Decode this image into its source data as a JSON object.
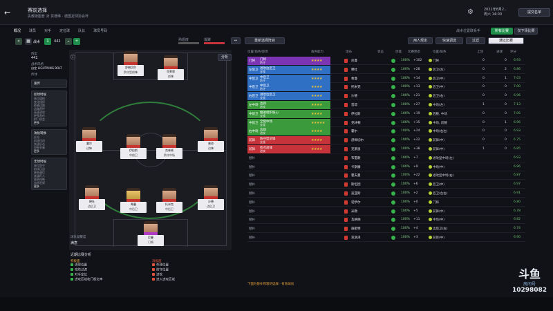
{
  "header": {
    "title": "赛前选择",
    "subtitle": "执教斯图普 对 贾德维 · 德国足球协会杯",
    "date_line1": "2021年8月2...",
    "date_line2": "周六 14:00",
    "continue_label": "提交名单"
  },
  "tabs": [
    "概况",
    "球员",
    "对手",
    "定位球",
    "队长",
    "球员号码"
  ],
  "toolbar": {
    "formation_label": "阵型",
    "formation": "442",
    "tactic_label": "战术风格",
    "tactic_name": "自定 LIGHTNING BOLT",
    "instruction_label": "传球",
    "instruction_value": "速传",
    "analysis_label": "分析",
    "select_label": "重新选择阵容",
    "human_select": "用人规定",
    "quick_select": "快速调选",
    "filter": "过滤",
    "all_matches": "所有比赛",
    "next_match": "仅下场比赛",
    "review": "通过比赛",
    "tactic_fit_label": "战术位置联系手",
    "fitness_label": "熟悉度",
    "cohesion_label": "凝聚"
  },
  "left_panel": {
    "formation_label": "阵型",
    "formation": "442",
    "style_label": "战术风格",
    "style": "自定 LIGHTNING BOLT",
    "pass_label": "传球",
    "pass_value": "速传",
    "box1_title": "控球时候",
    "box1_items": [
      "高位逼抢",
      "变化组织",
      "依赖边路",
      "边路直传",
      "高速进攻",
      "更多直传",
      "射门机会"
    ],
    "box2_title": "攻防转换",
    "box2_items": [
      "反抢",
      "前场压迫",
      "快速反击",
      "控制节奏"
    ],
    "box3_title": "无球时候",
    "box3_items": [
      "高位防守",
      "前场压迫",
      "更多越位",
      "紧逼盯人",
      "更多抢断",
      "战术犯规"
    ],
    "more": "更多"
  },
  "pitch": {
    "players": [
      {
        "name": "舒梅切尔",
        "role": "防守型前锋"
      },
      {
        "name": "克莱恩",
        "role": "前锋"
      },
      {
        "name": "霍尔",
        "role": "边锋"
      },
      {
        "name": "伊拉斯",
        "role": "中前卫"
      },
      {
        "name": "克林顿",
        "role": "防守中场"
      },
      {
        "name": "普琼",
        "role": "边锋"
      },
      {
        "name": "穆杜",
        "role": "边后卫"
      },
      {
        "name": "希曼",
        "role": "中后卫"
      },
      {
        "name": "托米克",
        "role": "中后卫"
      },
      {
        "name": "沙德",
        "role": "边后卫"
      },
      {
        "name": "尼曼",
        "role": "门将"
      }
    ]
  },
  "bottom_info": {
    "title": "近期比赛分析",
    "team_label": "球队凝聚度",
    "team_value": "满意",
    "left_header": "积极面",
    "right_header": "消极面",
    "left_items": [
      "进球位置",
      "攻防过渡",
      "对手定位",
      "进攻区域和门框化率"
    ],
    "right_items": [
      "失球位置",
      "防守位置",
      "进攻",
      "进入进攻区域"
    ]
  },
  "table": {
    "headers": [
      "位置/角色/职责",
      "角色能力",
      "球员",
      "状态",
      "体能",
      "比赛熟悉",
      "位置/角色",
      "上场",
      "进球",
      "评分"
    ],
    "rows": [
      {
        "pos": "门将",
        "role": "门将",
        "duty": "防守",
        "stars": "★★★★",
        "player": "尼曼",
        "pct": "100%",
        "delta": "+102",
        "posname": "门将",
        "n1": "0",
        "n2": "0",
        "rating": "6.93",
        "color": "#7b35b3"
      },
      {
        "pos": "左后卫",
        "role": "进攻边后卫",
        "duty": "支援",
        "stars": "★★★★",
        "player": "穆杜",
        "pct": "100%",
        "delta": "+28",
        "posname": "后卫(左)",
        "n1": "0",
        "n2": "2",
        "rating": "6.86",
        "color": "#2f6fc4"
      },
      {
        "pos": "中后卫",
        "role": "中后卫",
        "duty": "防守",
        "stars": "★★★★",
        "player": "希曼",
        "pct": "100%",
        "delta": "+14",
        "posname": "后卫(中)",
        "n1": "0",
        "n2": "1",
        "rating": "7.03",
        "color": "#2f6fc4"
      },
      {
        "pos": "中后卫",
        "role": "中后卫",
        "duty": "防守",
        "stars": "★★★★",
        "player": "托米克",
        "pct": "100%",
        "delta": "+13",
        "posname": "后卫(中)",
        "n1": "0",
        "n2": "0",
        "rating": "7.00",
        "color": "#2f6fc4"
      },
      {
        "pos": "右后卫",
        "role": "进攻边后卫",
        "duty": "支援",
        "stars": "★★★★",
        "player": "沙德",
        "pct": "100%",
        "delta": "+21",
        "posname": "后卫(右)",
        "n1": "0",
        "n2": "0",
        "rating": "6.96",
        "color": "#2f6fc4"
      },
      {
        "pos": "左中场",
        "role": "边锋",
        "duty": "进攻",
        "stars": "★★★★",
        "player": "普琼",
        "pct": "100%",
        "delta": "+27",
        "posname": "中场(左)",
        "n1": "1",
        "n2": "0",
        "rating": "7.13",
        "color": "#3a9a3c"
      },
      {
        "pos": "中前卫",
        "role": "推进组织核心",
        "duty": "支援",
        "stars": "★★★★",
        "player": "伊拉斯",
        "pct": "100%",
        "delta": "+19",
        "posname": "后腰, 中场",
        "n1": "0",
        "n2": "0",
        "rating": "7.05",
        "color": "#3a9a3c"
      },
      {
        "pos": "中前卫",
        "role": "全能中场",
        "duty": "支援",
        "stars": "★★★★★",
        "player": "克林顿",
        "pct": "100%",
        "delta": "+15",
        "posname": "中场, 前腰",
        "n1": "0",
        "n2": "1",
        "rating": "6.96",
        "color": "#3a9a3c"
      },
      {
        "pos": "右中场",
        "role": "边锋",
        "duty": "进攻",
        "stars": "★★★★",
        "player": "霍尔",
        "pct": "100%",
        "delta": "+24",
        "posname": "中场(右左)",
        "n1": "0",
        "n2": "0",
        "rating": "6.93",
        "color": "#3a9a3c"
      },
      {
        "pos": "前锋",
        "role": "防守型前锋",
        "duty": "支援",
        "stars": "★★★★",
        "player": "舒梅切尔",
        "pct": "100%",
        "delta": "+22",
        "posname": "前锋(中)",
        "n1": "0",
        "n2": "0",
        "rating": "6.75",
        "color": "#c7333a"
      },
      {
        "pos": "前锋",
        "role": "抢点前锋",
        "duty": "进攻",
        "stars": "★★★★",
        "player": "克莱恩",
        "pct": "100%",
        "delta": "+38",
        "posname": "前锋(中)",
        "n1": "1",
        "n2": "0",
        "rating": "6.85",
        "color": "#c7333a"
      },
      {
        "pos": "替补",
        "role": "",
        "duty": "",
        "stars": "",
        "player": "布雷默",
        "pct": "100%",
        "delta": "+7",
        "posname": "进攻型中场(左)",
        "n1": "",
        "n2": "",
        "rating": "6.93",
        "color": ""
      },
      {
        "pos": "替补",
        "role": "",
        "duty": "",
        "stars": "",
        "player": "卡斯滕",
        "pct": "100%",
        "delta": "+9",
        "posname": "中场(中)",
        "n1": "",
        "n2": "",
        "rating": "6.96",
        "color": ""
      },
      {
        "pos": "替补",
        "role": "",
        "duty": "",
        "stars": "",
        "player": "霍夫曼",
        "pct": "100%",
        "delta": "+22",
        "posname": "进攻型中场(右)",
        "n1": "",
        "n2": "",
        "rating": "6.87",
        "color": ""
      },
      {
        "pos": "替补",
        "role": "",
        "duty": "",
        "stars": "",
        "player": "斯坦因",
        "pct": "100%",
        "delta": "+6",
        "posname": "后卫(中)",
        "n1": "",
        "n2": "",
        "rating": "6.97",
        "color": ""
      },
      {
        "pos": "替补",
        "role": "",
        "duty": "",
        "stars": "",
        "player": "迪亚斯",
        "pct": "100%",
        "delta": "+2",
        "posname": "后卫(左右)",
        "n1": "",
        "n2": "",
        "rating": "6.91",
        "color": ""
      },
      {
        "pos": "替补",
        "role": "",
        "duty": "",
        "stars": "",
        "player": "诺伊尔",
        "pct": "100%",
        "delta": "+0",
        "posname": "门将",
        "n1": "",
        "n2": "",
        "rating": "6.80",
        "color": ""
      },
      {
        "pos": "替补",
        "role": "",
        "duty": "",
        "stars": "",
        "player": "米勒",
        "pct": "100%",
        "delta": "+5",
        "posname": "前锋(中)",
        "n1": "",
        "n2": "",
        "rating": "6.78",
        "color": ""
      },
      {
        "pos": "替补",
        "role": "",
        "duty": "",
        "stars": "",
        "player": "瓦格纳",
        "pct": "100%",
        "delta": "+11",
        "posname": "中场(中)",
        "n1": "",
        "n2": "",
        "rating": "6.82",
        "color": ""
      },
      {
        "pos": "替补",
        "role": "",
        "duty": "",
        "stars": "",
        "player": "施密特",
        "pct": "100%",
        "delta": "+4",
        "posname": "边后卫(右)",
        "n1": "",
        "n2": "",
        "rating": "6.74",
        "color": ""
      },
      {
        "pos": "替补",
        "role": "",
        "duty": "",
        "stars": "",
        "player": "克洛泽",
        "pct": "100%",
        "delta": "+3",
        "posname": "前锋(中)",
        "n1": "",
        "n2": "",
        "rating": "6.90",
        "color": ""
      }
    ],
    "footnote": "下面为替补阵容的选择 · 有效球员"
  },
  "watermark": {
    "logo": "斗鱼",
    "sub": "房间号",
    "room": "10298082"
  }
}
